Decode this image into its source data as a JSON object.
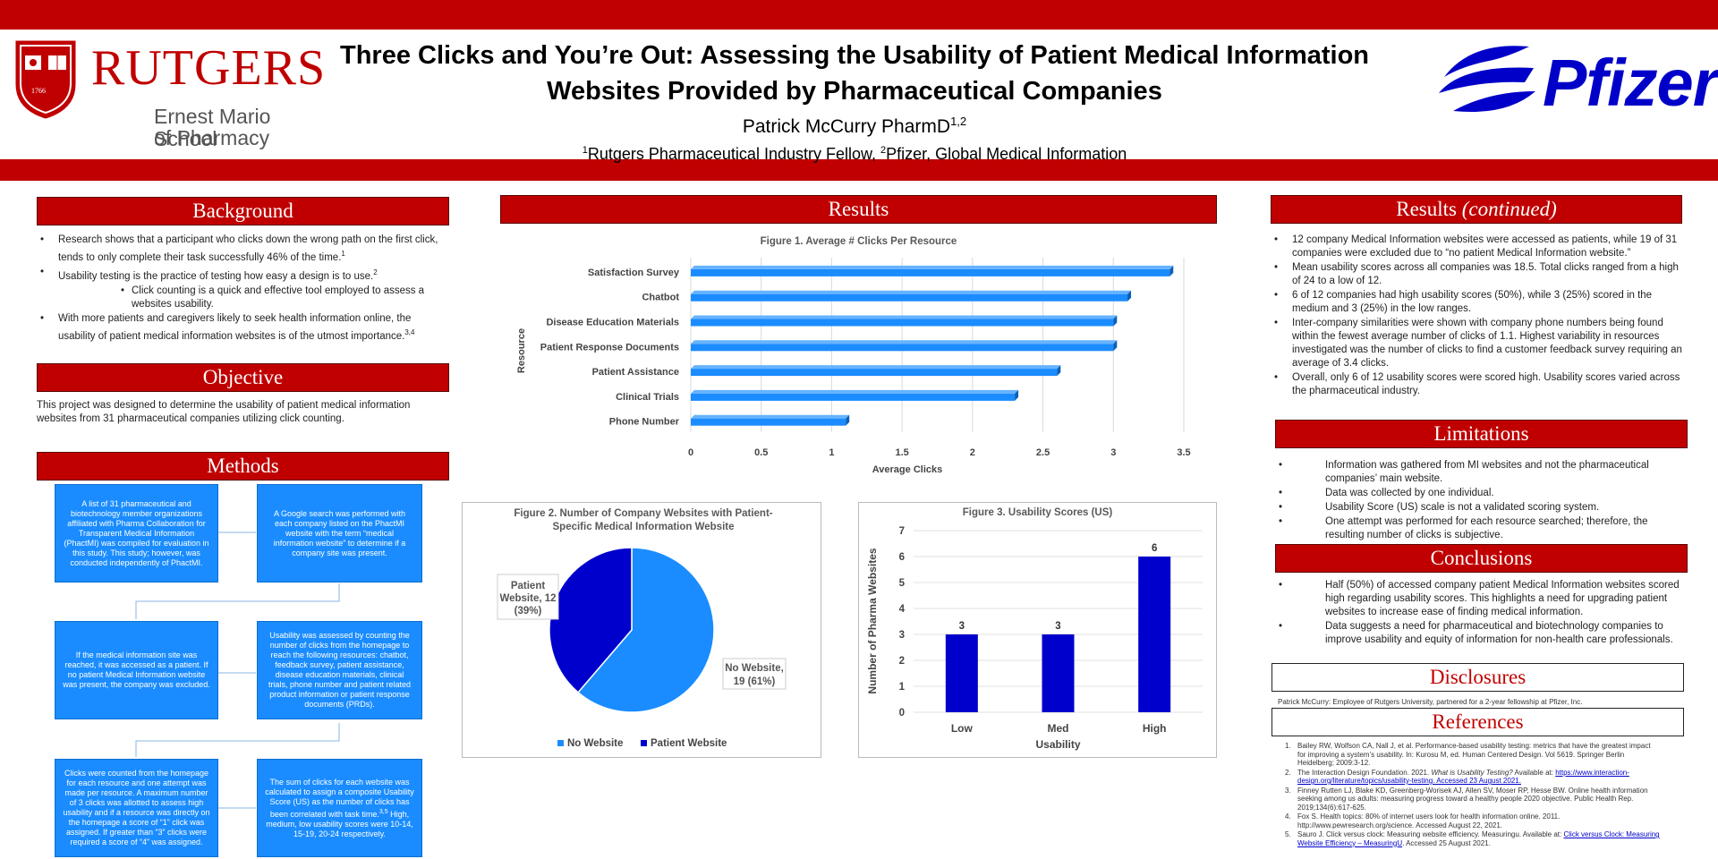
{
  "title": {
    "line1": "Three Clicks and You’re Out: Assessing the Usability of Patient Medical Information",
    "line2": "Websites Provided by Pharmaceutical Companies",
    "author": "Patrick McCurry PharmD",
    "author_sup": "1,2",
    "aff_sup1": "1",
    "aff_part1": "Rutgers Pharmaceutical Industry Fellow, ",
    "aff_sup2": "2",
    "aff_part2": "Pfizer, Global Medical Information"
  },
  "rutgers": {
    "name": "RUTGERS",
    "school1": "Ernest Mario School",
    "school2": "of Pharmacy",
    "seal_year": "1766"
  },
  "pfizer": {
    "name": "Pfizer"
  },
  "background": {
    "heading": "Background",
    "b1": "Research shows that a participant who clicks down the wrong path on the first click, tends to only complete their task successfully 46% of the time.",
    "b1_sup": "1",
    "b2": "Usability testing is the practice of testing how easy a design is to use.",
    "b2_sup": "2",
    "b3": "Click counting is a quick and effective tool employed to assess a websites usability.",
    "b4": "With more patients and caregivers likely to seek health information online, the usability of patient medical information websites is of the utmost importance.",
    "b4_sup": "3,4"
  },
  "objective": {
    "heading": "Objective",
    "text": "This project was designed to determine the usability of patient medical information websites from 31 pharmaceutical companies utilizing click counting."
  },
  "methods": {
    "heading": "Methods",
    "steps": [
      "A list of 31 pharmaceutical and biotechnology member organizations affiliated with Pharma Collaboration for Transparent Medical Information (PhactMI) was compiled for evaluation in this study. This study; however, was conducted independently of PhactMI.",
      "A Google search was performed with each company listed on the PhactMI website with the term “medical information website” to determine if a company site was present.",
      "If the medical information site was reached, it was accessed as a patient. If no patient Medical Information website was present, the company was excluded.",
      "Usability was assessed by counting the number of clicks from the homepage to reach the following resources: chatbot, feedback survey, patient assistance, disease education materials, clinical trials, phone number and patient related product information or patient response documents (PRDs).",
      "Clicks were counted from the homepage for each resource and one attempt was made per resource. A maximum number of 3 clicks was allotted to assess high usability and if a resource was directly on the homepage a score of “1” click was assigned. If greater than “3” clicks were required a score of “4” was assigned.",
      "The sum of clicks for each website was calculated to assign a composite Usability Score (US) as the number of clicks has been correlated with task time.",
      "High, medium, low usability scores were 10-14, 15-19, 20-24 respectively."
    ],
    "step6_sup": "3,5"
  },
  "results": {
    "heading": "Results",
    "heading2": "Results",
    "heading2_italic": "(continued)",
    "bullets": [
      "12 company Medical Information websites were accessed as patients, while 19 of 31 companies were excluded due to “no patient Medical Information website.”",
      "Mean usability scores across all companies was 18.5. Total clicks ranged from a high of 24 to a low of 12.",
      "6 of 12 companies had high usability scores (50%), while 3 (25%) scored in the medium and 3 (25%) in the low ranges.",
      "Inter-company similarities were shown with company phone numbers being found within the fewest average number of clicks of 1.1. Highest variability in resources investigated was the number of clicks to find a customer feedback survey requiring an average of 3.4 clicks.",
      "Overall, only 6 of 12 usability scores were scored high. Usability scores varied across the pharmaceutical industry."
    ]
  },
  "limitations": {
    "heading": "Limitations",
    "bullets": [
      "Information was gathered from MI websites and not the pharmaceutical companies’ main website.",
      "Data was collected by one individual.",
      "Usability Score (US) scale is not a validated scoring system.",
      "One attempt was performed for each resource searched; therefore, the resulting number of clicks is subjective."
    ]
  },
  "conclusions": {
    "heading": "Conclusions",
    "bullets": [
      "Half (50%) of accessed company patient Medical Information websites scored high regarding usability scores. This highlights a need for upgrading patient websites to increase ease of finding medical information.",
      "Data suggests a need for pharmaceutical and biotechnology companies to improve usability and equity of information for non-health care professionals."
    ]
  },
  "disclosures": {
    "heading": "Disclosures",
    "text": "Patrick McCurry: Employee of Rutgers University, partnered for a 2-year fellowship at Pfizer, Inc."
  },
  "references": {
    "heading": "References",
    "items": [
      {
        "num": "1.",
        "text": "Bailey RW, Wolfson CA, Nall J, et al. Performance-based usability testing: metrics that have the greatest impact for improving a system’s usability. In: Kurosu M, ed. Human Centered Design. Vol 5619. Springer Berlin Heidelberg; 2009:3-12."
      },
      {
        "num": "2.",
        "text": "The Interaction Design Foundation. 2021.",
        "italic": "What is Usability Testing?",
        "text2": "Available at:",
        "link": "https://www.interaction-design.org/literature/topics/usability-testing. Accessed 23 August 2021."
      },
      {
        "num": "3.",
        "text": "Finney Rutten LJ, Blake KD, Greenberg-Worisek AJ, Allen SV, Moser RP, Hesse BW. Online health information seeking among us adults: measuring progress toward a healthy people 2020 objective. Public Health Rep. 2019;134(6):617-625."
      },
      {
        "num": "4.",
        "text": "Fox S. Health topics: 80% of internet users look for health information online. 2011. http://www.pewresearch.org/science. Accessed August 22, 2021."
      },
      {
        "num": "5.",
        "text": "Sauro J. Click versus clock: Measuring website efficiency. Measuringu. Available at:",
        "link": "Click versus Clock: Measuring Website Efficiency – MeasuringU",
        "text2": ". Accessed 25 August 2021."
      }
    ]
  },
  "colors": {
    "brand_red": "#c00000",
    "bar_blue": "#1a8cff",
    "dark_blue": "#0000cc",
    "pfizer_blue": "#0000c9"
  },
  "chart_data": [
    {
      "type": "bar",
      "orientation": "horizontal",
      "title": "Figure 1. Average # Clicks Per Resource",
      "xlabel": "Average Clicks",
      "ylabel": "Resource",
      "categories": [
        "Satisfaction Survey",
        "Chatbot",
        "Disease Education Materials",
        "Patient Response Documents",
        "Patient Assistance",
        "Clinical Trials",
        "Phone Number"
      ],
      "values": [
        3.4,
        3.1,
        3.0,
        3.0,
        2.6,
        2.3,
        1.1
      ],
      "xlim": [
        0,
        3.5
      ],
      "xticks": [
        "0",
        "0.5",
        "1",
        "1.5",
        "2",
        "2.5",
        "3",
        "3.5"
      ],
      "grid": true
    },
    {
      "type": "pie",
      "title": "Figure 2. Number of Company Websites with Patient-Specific Medical Information Website",
      "slices": [
        {
          "name": "No Website",
          "value": 19,
          "label1": "No Website,",
          "label2": "19 (61%)",
          "color": "#1a8cff"
        },
        {
          "name": "Patient Website",
          "value": 12,
          "label1": "Patient",
          "label2": "Website, 12",
          "label3": "(39%)",
          "color": "#0000cc"
        }
      ],
      "legend": "bottom"
    },
    {
      "type": "bar",
      "title": "Figure 3. Usability Scores (US)",
      "xlabel": "Usability",
      "ylabel": "Number of Pharma Websites",
      "categories": [
        "Low",
        "Med",
        "High"
      ],
      "values": [
        3,
        3,
        6
      ],
      "ylim": [
        0,
        7
      ],
      "yticks": [
        "0",
        "1",
        "2",
        "3",
        "4",
        "5",
        "6",
        "7"
      ],
      "grid": true
    }
  ]
}
